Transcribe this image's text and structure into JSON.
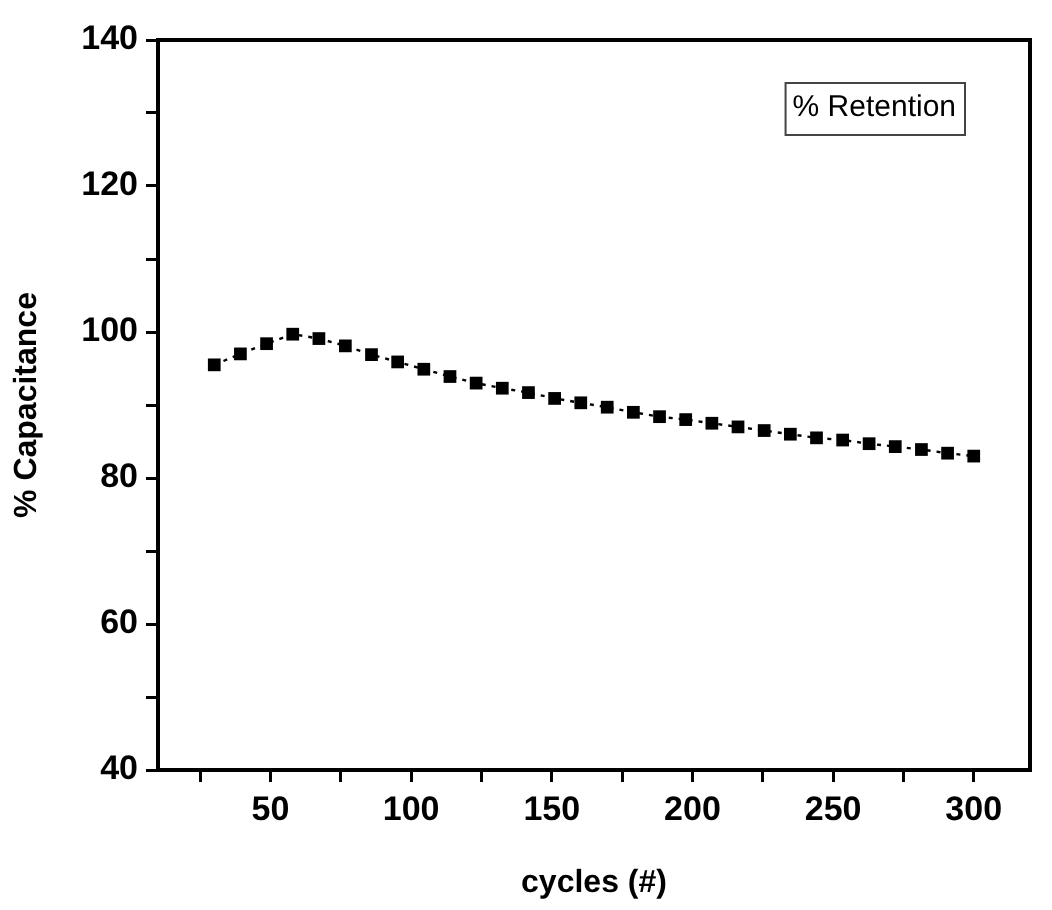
{
  "chart_data": {
    "type": "line",
    "xlabel": "cycles (#)",
    "ylabel": "% Capacitance",
    "x": [
      30,
      39.3,
      48.6,
      57.9,
      67.2,
      76.6,
      85.9,
      95.2,
      104.5,
      113.8,
      123.1,
      132.4,
      141.7,
      151.0,
      160.3,
      169.7,
      179.0,
      188.3,
      197.6,
      206.9,
      216.2,
      225.5,
      234.8,
      244.1,
      253.4,
      262.8,
      272.1,
      281.4,
      290.7,
      300
    ],
    "series": [
      {
        "name": "% Retention",
        "color": "#000000",
        "values": [
          95.5,
          97.0,
          98.4,
          99.7,
          99.1,
          98.1,
          96.9,
          95.9,
          94.9,
          93.9,
          93.0,
          92.3,
          91.7,
          90.9,
          90.3,
          89.7,
          89.0,
          88.4,
          88.0,
          87.5,
          87.0,
          86.5,
          86.0,
          85.5,
          85.2,
          84.7,
          84.3,
          83.9,
          83.4,
          83.0
        ]
      }
    ],
    "xlim": [
      10,
      320
    ],
    "xticks": [
      {
        "value": 25,
        "label": null
      },
      50,
      {
        "value": 75,
        "label": null
      },
      100,
      {
        "value": 125,
        "label": null
      },
      150,
      {
        "value": 175,
        "label": null
      },
      200,
      {
        "value": 225,
        "label": null
      },
      250,
      {
        "value": 275,
        "label": null
      },
      300
    ],
    "ylim": [
      40,
      140
    ],
    "yticks": [
      40,
      {
        "value": 50,
        "label": null
      },
      60,
      {
        "value": 70,
        "label": null
      },
      80,
      {
        "value": 90,
        "label": null
      },
      100,
      {
        "value": 110,
        "label": null
      },
      120,
      {
        "value": 130,
        "label": null
      },
      140
    ],
    "grid": false,
    "legend": "top right",
    "marker": "square",
    "line_style": "dotted"
  }
}
